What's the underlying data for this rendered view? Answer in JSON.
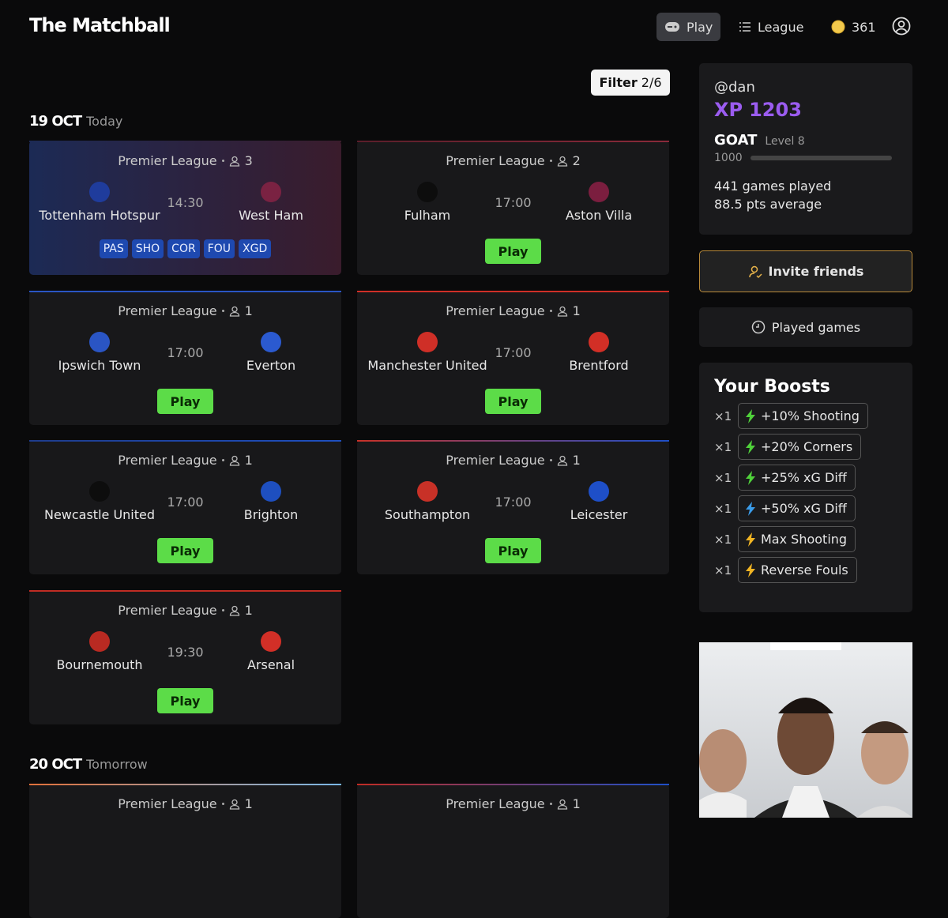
{
  "header": {
    "brand": "The Matchball",
    "nav": [
      {
        "label": "Play",
        "active": true
      },
      {
        "label": "League",
        "active": false
      }
    ],
    "coins": "361"
  },
  "filter": {
    "label": "Filter",
    "value": "2/6"
  },
  "days": [
    {
      "date": "19 OCT",
      "label": "Today",
      "matches": [
        {
          "league": "Premier League",
          "players": "3",
          "home": "Tottenham Hotspur",
          "away": "West Ham",
          "time": "14:30",
          "home_color": "#1f3c9c",
          "away_color": "#7a2242",
          "accent": [
            "#1c2a55",
            "#3a1c2c"
          ],
          "highlight": true,
          "tags": [
            "PAS",
            "SHO",
            "COR",
            "FOU",
            "XGD"
          ]
        },
        {
          "league": "Premier League",
          "players": "2",
          "home": "Fulham",
          "away": "Aston Villa",
          "time": "17:00",
          "home_color": "#0d0d0d",
          "away_color": "#7b1e3f",
          "accent": [
            "#5a1e2a",
            "#8a2a3a"
          ],
          "action": "Play"
        },
        {
          "league": "Premier League",
          "players": "1",
          "home": "Ipswich Town",
          "away": "Everton",
          "time": "17:00",
          "home_color": "#2a55c4",
          "away_color": "#2b5ad0",
          "accent": [
            "#2a55c4",
            "#2a55c4"
          ],
          "action": "Play"
        },
        {
          "league": "Premier League",
          "players": "1",
          "home": "Manchester United",
          "away": "Brentford",
          "time": "17:00",
          "home_color": "#cf2f27",
          "away_color": "#d22f26",
          "accent": [
            "#cf2f27",
            "#cf2f27"
          ],
          "action": "Play"
        },
        {
          "league": "Premier League",
          "players": "1",
          "home": "Newcastle United",
          "away": "Brighton",
          "time": "17:00",
          "home_color": "#0d0d0d",
          "away_color": "#1e4fbf",
          "accent": [
            "#1e3c8c",
            "#1e4fbf"
          ],
          "action": "Play"
        },
        {
          "league": "Premier League",
          "players": "1",
          "home": "Southampton",
          "away": "Leicester",
          "time": "17:00",
          "home_color": "#c83127",
          "away_color": "#1e4fc8",
          "accent": [
            "#c83127",
            "#1e4fc8"
          ],
          "action": "Play"
        },
        {
          "league": "Premier League",
          "players": "1",
          "home": "Bournemouth",
          "away": "Arsenal",
          "time": "19:30",
          "home_color": "#b92a22",
          "away_color": "#d22f27",
          "accent": [
            "#c02c24",
            "#c02c24"
          ],
          "action": "Play"
        }
      ]
    },
    {
      "date": "20 OCT",
      "label": "Tomorrow",
      "matches": [
        {
          "league": "Premier League",
          "players": "1",
          "accent": [
            "#e0703a",
            "#7ab8e8"
          ]
        },
        {
          "league": "Premier League",
          "players": "1",
          "accent": [
            "#c02c24",
            "#1e4fc8"
          ]
        }
      ]
    }
  ],
  "profile": {
    "handle": "@dan",
    "xp_label": "XP",
    "xp": "1203",
    "rank": "GOAT",
    "level": "Level 8",
    "threshold": "1000",
    "games": "441 games played",
    "average": "88.5 pts average"
  },
  "buttons": {
    "invite": "Invite friends",
    "played": "Played games"
  },
  "boosts": {
    "title": "Your Boosts",
    "items": [
      {
        "count": "×1",
        "label": "+10% Shooting",
        "color": "#4fd13a"
      },
      {
        "count": "×1",
        "label": "+20% Corners",
        "color": "#4fd13a"
      },
      {
        "count": "×1",
        "label": "+25% xG Diff",
        "color": "#4fd13a"
      },
      {
        "count": "×1",
        "label": "+50% xG Diff",
        "color": "#3a9be8"
      },
      {
        "count": "×1",
        "label": "Max Shooting",
        "color": "#f0b423"
      },
      {
        "count": "×1",
        "label": "Reverse Fouls",
        "color": "#f0b423"
      }
    ]
  }
}
